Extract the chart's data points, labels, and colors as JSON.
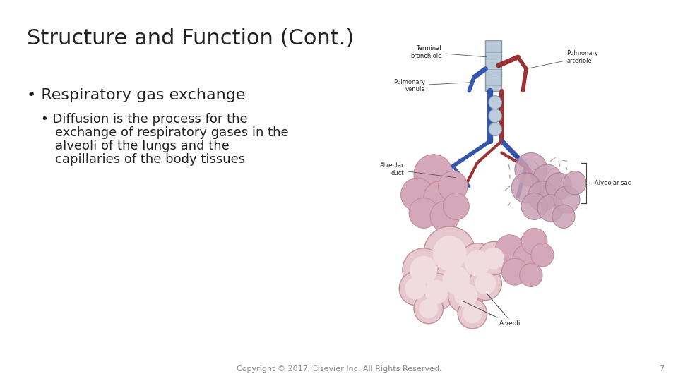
{
  "title": "Structure and Function (Cont.)",
  "bullet1": "• Respiratory gas exchange",
  "bullet2_prefix": "• Diffusion is the process for the",
  "bullet2_lines": [
    "exchange of respiratory gases in the",
    "alveoli of the lungs and the",
    "capillaries of the body tissues"
  ],
  "footer": "Copyright © 2017, Elsevier Inc. All Rights Reserved.",
  "page_number": "7",
  "background_color": "#ffffff",
  "title_color": "#222222",
  "text_color": "#222222",
  "footer_color": "#888888",
  "title_fontsize": 22,
  "bullet1_fontsize": 16,
  "bullet2_fontsize": 13,
  "footer_fontsize": 8,
  "diagram_labels": {
    "terminal_bronchiole": "Terminal\nbronchiole",
    "pulmonary_arteriole": "Pulmonary\narteriole",
    "pulmonary_venule": "Pulmonary\nvenule",
    "alveolar_duct": "Alveolar\nduct",
    "alveolar_sac": "Alveolar sac",
    "alveoli": "Alveoli"
  }
}
